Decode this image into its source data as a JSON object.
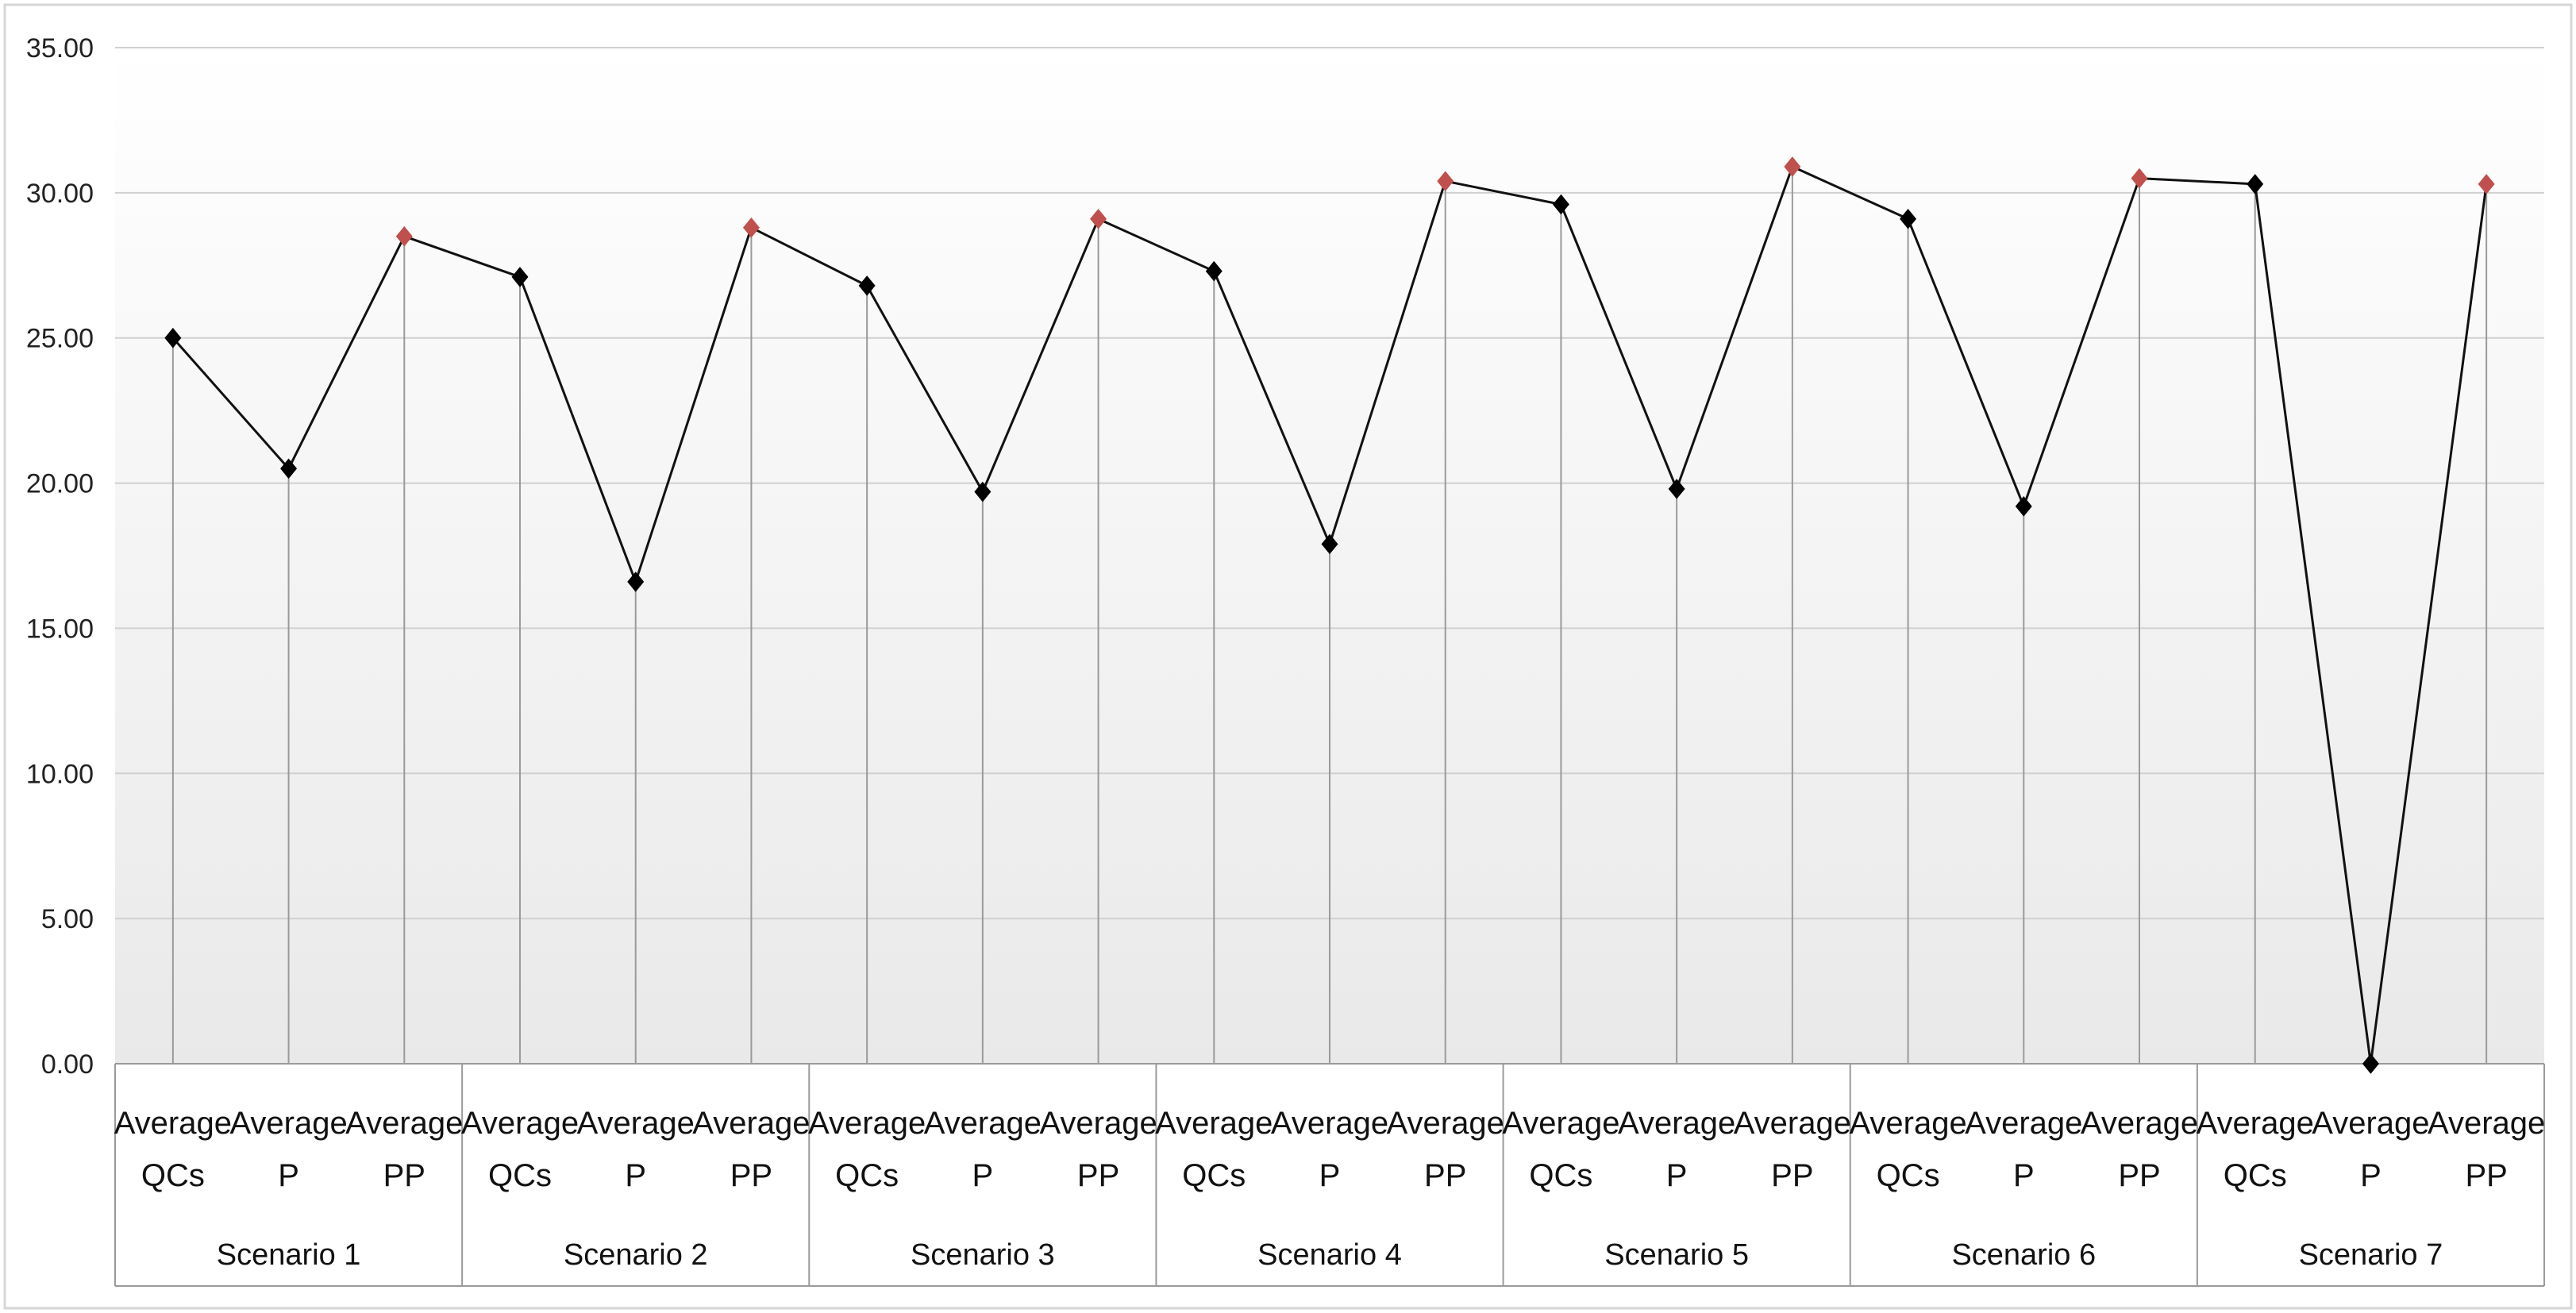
{
  "chart_data": {
    "type": "line",
    "title": "",
    "xlabel": "",
    "ylabel": "",
    "ylim": [
      0,
      35
    ],
    "y_ticks": [
      "0.00",
      "5.00",
      "10.00",
      "15.00",
      "20.00",
      "25.00",
      "30.00",
      "35.00"
    ],
    "grid": "horizontal",
    "groups": [
      {
        "label": "Scenario 1",
        "categories": [
          [
            "Average",
            "QCs"
          ],
          [
            "Average",
            "P"
          ],
          [
            "Average",
            "PP"
          ]
        ],
        "values": [
          25.0,
          20.5,
          28.5
        ]
      },
      {
        "label": "Scenario 2",
        "categories": [
          [
            "Average",
            "QCs"
          ],
          [
            "Average",
            "P"
          ],
          [
            "Average",
            "PP"
          ]
        ],
        "values": [
          27.1,
          16.6,
          28.8
        ]
      },
      {
        "label": "Scenario 3",
        "categories": [
          [
            "Average",
            "QCs"
          ],
          [
            "Average",
            "P"
          ],
          [
            "Average",
            "PP"
          ]
        ],
        "values": [
          26.8,
          19.7,
          29.1
        ]
      },
      {
        "label": "Scenario 4",
        "categories": [
          [
            "Average",
            "QCs"
          ],
          [
            "Average",
            "P"
          ],
          [
            "Average",
            "PP"
          ]
        ],
        "values": [
          27.3,
          17.9,
          30.4
        ]
      },
      {
        "label": "Scenario 5",
        "categories": [
          [
            "Average",
            "QCs"
          ],
          [
            "Average",
            "P"
          ],
          [
            "Average",
            "PP"
          ]
        ],
        "values": [
          29.6,
          19.8,
          30.9
        ]
      },
      {
        "label": "Scenario 6",
        "categories": [
          [
            "Average",
            "QCs"
          ],
          [
            "Average",
            "P"
          ],
          [
            "Average",
            "PP"
          ]
        ],
        "values": [
          29.1,
          19.2,
          30.5
        ]
      },
      {
        "label": "Scenario 7",
        "categories": [
          [
            "Average",
            "QCs"
          ],
          [
            "Average",
            "P"
          ],
          [
            "Average",
            "PP"
          ]
        ],
        "values": [
          30.3,
          0.0,
          30.3
        ]
      }
    ],
    "colors": {
      "line": "#111111",
      "marker_default": "#000000",
      "marker_pp": "#c0504d",
      "gridline": "#d0d0d0",
      "dropline": "#9a9a9a"
    }
  }
}
